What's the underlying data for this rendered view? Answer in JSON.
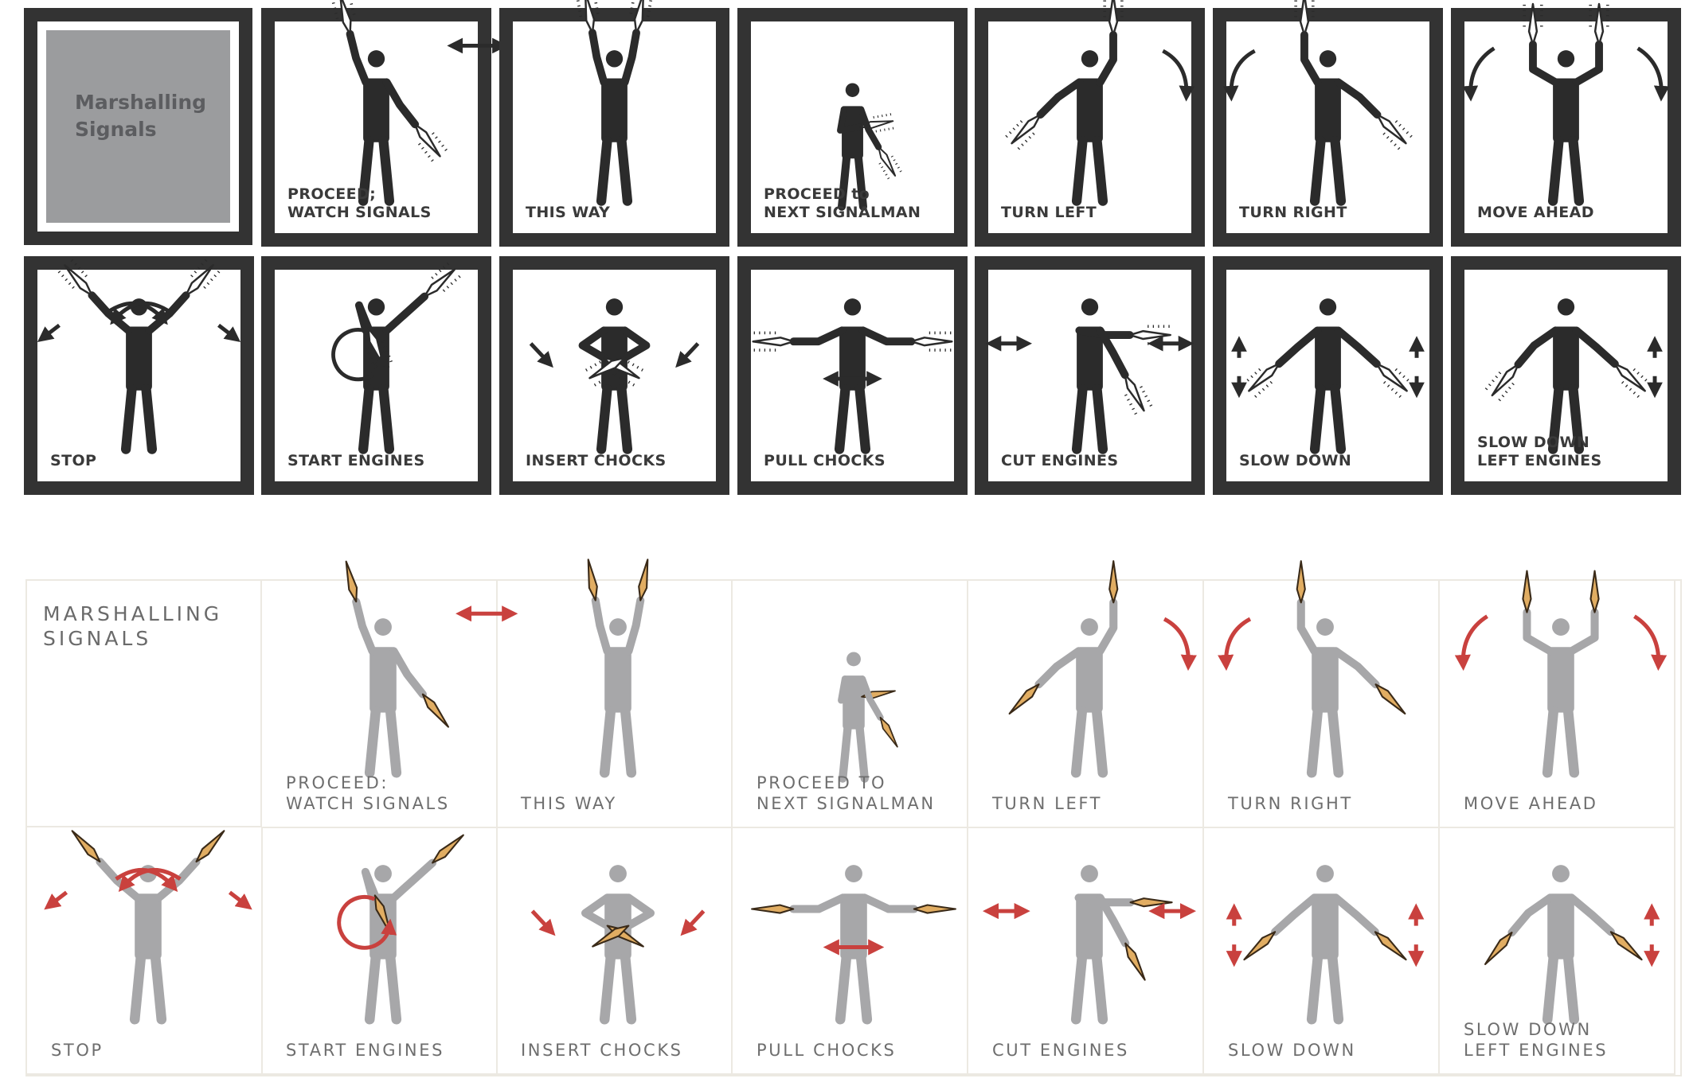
{
  "colors": {
    "old_frame": "#333333",
    "old_figure": "#2b2b2b",
    "old_title_tile": "#9b9c9e",
    "new_figure": "#a7a7a9",
    "new_wand_body": "#e1ad62",
    "new_wand_outline": "#3a2a18",
    "new_arrow": "#c9413e",
    "new_text": "#6e6e6e"
  },
  "old_style": {
    "title": "Marshalling\nSignals",
    "signals": [
      {
        "id": "proceed-watch-signals",
        "label": "PROCEED;\nWATCH SIGNALS"
      },
      {
        "id": "this-way",
        "label": "THIS WAY"
      },
      {
        "id": "proceed-next-signalman",
        "label": "PROCEED to\nNEXT SIGNALMAN"
      },
      {
        "id": "turn-left",
        "label": "TURN LEFT"
      },
      {
        "id": "turn-right",
        "label": "TURN RIGHT"
      },
      {
        "id": "move-ahead",
        "label": "MOVE AHEAD"
      },
      {
        "id": "stop",
        "label": "STOP"
      },
      {
        "id": "start-engines",
        "label": "START ENGINES"
      },
      {
        "id": "insert-chocks",
        "label": "INSERT CHOCKS"
      },
      {
        "id": "pull-chocks",
        "label": "PULL CHOCKS"
      },
      {
        "id": "cut-engines",
        "label": "CUT ENGINES"
      },
      {
        "id": "slow-down",
        "label": "SLOW DOWN"
      },
      {
        "id": "slow-down-left-engines",
        "label": "SLOW DOWN\nLEFT ENGINES"
      }
    ]
  },
  "new_style": {
    "title": "MARSHALLING\nSIGNALS",
    "signals": [
      {
        "id": "proceed-watch-signals",
        "label": "PROCEED:\nWATCH SIGNALS"
      },
      {
        "id": "this-way",
        "label": "THIS WAY"
      },
      {
        "id": "proceed-next-signalman",
        "label": "PROCEED TO\nNEXT SIGNALMAN"
      },
      {
        "id": "turn-left",
        "label": "TURN LEFT"
      },
      {
        "id": "turn-right",
        "label": "TURN RIGHT"
      },
      {
        "id": "move-ahead",
        "label": "MOVE AHEAD"
      },
      {
        "id": "stop",
        "label": "STOP"
      },
      {
        "id": "start-engines",
        "label": "START ENGINES"
      },
      {
        "id": "insert-chocks",
        "label": "INSERT CHOCKS"
      },
      {
        "id": "pull-chocks",
        "label": "PULL CHOCKS"
      },
      {
        "id": "cut-engines",
        "label": "CUT ENGINES"
      },
      {
        "id": "slow-down",
        "label": "SLOW DOWN"
      },
      {
        "id": "slow-down-left-engines",
        "label": "SLOW DOWN\nLEFT ENGINES"
      }
    ]
  }
}
